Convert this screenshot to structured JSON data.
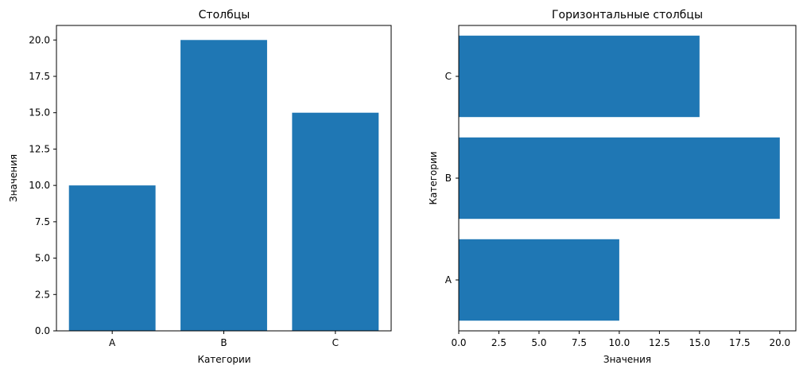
{
  "chart_data": [
    {
      "type": "bar",
      "orientation": "vertical",
      "title": "Столбцы",
      "xlabel": "Категории",
      "ylabel": "Значения",
      "categories": [
        "A",
        "B",
        "C"
      ],
      "values": [
        10,
        20,
        15
      ],
      "ylim": [
        0,
        21
      ],
      "yticks": [
        "0.0",
        "2.5",
        "5.0",
        "7.5",
        "10.0",
        "12.5",
        "15.0",
        "17.5",
        "20.0"
      ],
      "grid": false,
      "bar_color": "#1f77b4"
    },
    {
      "type": "bar",
      "orientation": "horizontal",
      "title": "Горизонтальные столбцы",
      "xlabel": "Значения",
      "ylabel": "Категории",
      "categories": [
        "A",
        "B",
        "C"
      ],
      "values": [
        10,
        20,
        15
      ],
      "xlim": [
        0,
        21
      ],
      "xticks": [
        "0.0",
        "2.5",
        "5.0",
        "7.5",
        "10.0",
        "12.5",
        "15.0",
        "17.5",
        "20.0"
      ],
      "grid": false,
      "bar_color": "#1f77b4"
    }
  ]
}
